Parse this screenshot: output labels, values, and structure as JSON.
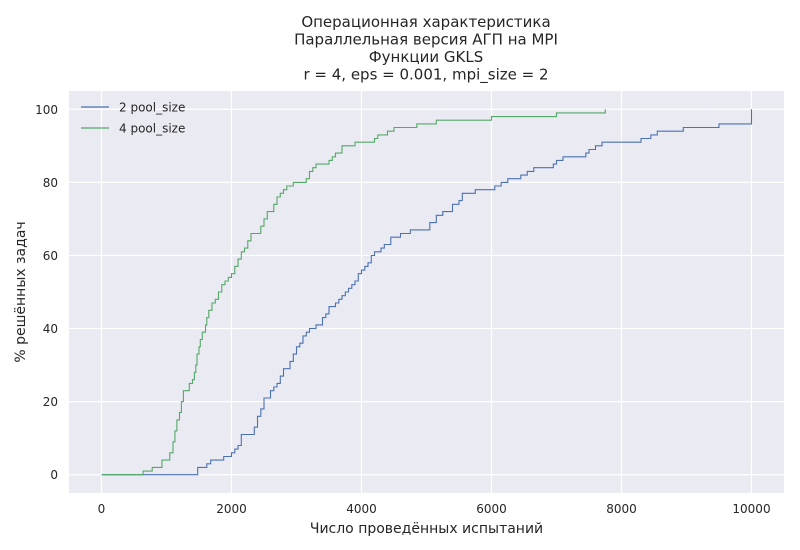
{
  "chart_data": {
    "type": "line",
    "title_lines": [
      "Операционная характеристика",
      "Параллельная версия АГП на MPI",
      "Функции GKLS",
      "r = 4, eps = 0.001, mpi_size = 2"
    ],
    "xlabel": "Число проведённых испытаний",
    "ylabel": "% решённых задач",
    "xlim": [
      -500,
      10500
    ],
    "ylim": [
      -5,
      105
    ],
    "xticks": [
      0,
      2000,
      4000,
      6000,
      8000,
      10000
    ],
    "yticks": [
      0,
      20,
      40,
      60,
      80,
      100
    ],
    "xtick_labels": [
      "0",
      "2000",
      "4000",
      "6000",
      "8000",
      "10000"
    ],
    "ytick_labels": [
      "0",
      "20",
      "40",
      "60",
      "80",
      "100"
    ],
    "grid": true,
    "legend_position": "top-left",
    "background": "#eaeaf2",
    "series": [
      {
        "name": "2 pool_size",
        "color": "#4c72b0",
        "points": [
          [
            0,
            0
          ],
          [
            1450,
            0
          ],
          [
            1480,
            2
          ],
          [
            1600,
            2
          ],
          [
            1620,
            3
          ],
          [
            1680,
            4
          ],
          [
            1850,
            4
          ],
          [
            1880,
            5
          ],
          [
            2000,
            6
          ],
          [
            2050,
            7
          ],
          [
            2100,
            8
          ],
          [
            2150,
            11
          ],
          [
            2300,
            11
          ],
          [
            2350,
            13
          ],
          [
            2400,
            16
          ],
          [
            2450,
            18
          ],
          [
            2500,
            21
          ],
          [
            2550,
            21
          ],
          [
            2600,
            23
          ],
          [
            2650,
            24
          ],
          [
            2700,
            25
          ],
          [
            2750,
            27
          ],
          [
            2800,
            29
          ],
          [
            2900,
            31
          ],
          [
            2950,
            33
          ],
          [
            3000,
            35
          ],
          [
            3050,
            36
          ],
          [
            3100,
            38
          ],
          [
            3150,
            39
          ],
          [
            3200,
            40
          ],
          [
            3300,
            41
          ],
          [
            3400,
            43
          ],
          [
            3450,
            44
          ],
          [
            3500,
            46
          ],
          [
            3600,
            47
          ],
          [
            3650,
            48
          ],
          [
            3700,
            49
          ],
          [
            3750,
            50
          ],
          [
            3800,
            51
          ],
          [
            3850,
            52
          ],
          [
            3900,
            53
          ],
          [
            3950,
            55
          ],
          [
            4000,
            56
          ],
          [
            4050,
            57
          ],
          [
            4100,
            58
          ],
          [
            4150,
            60
          ],
          [
            4200,
            61
          ],
          [
            4300,
            62
          ],
          [
            4350,
            63
          ],
          [
            4450,
            65
          ],
          [
            4600,
            66
          ],
          [
            4750,
            67
          ],
          [
            5050,
            69
          ],
          [
            5150,
            71
          ],
          [
            5250,
            72
          ],
          [
            5400,
            74
          ],
          [
            5500,
            75
          ],
          [
            5550,
            77
          ],
          [
            5750,
            78
          ],
          [
            6050,
            79
          ],
          [
            6150,
            80
          ],
          [
            6250,
            81
          ],
          [
            6450,
            82
          ],
          [
            6550,
            83
          ],
          [
            6650,
            84
          ],
          [
            6950,
            85
          ],
          [
            7000,
            86
          ],
          [
            7100,
            87
          ],
          [
            7450,
            88
          ],
          [
            7500,
            89
          ],
          [
            7600,
            90
          ],
          [
            7700,
            91
          ],
          [
            8300,
            92
          ],
          [
            8450,
            93
          ],
          [
            8550,
            94
          ],
          [
            8950,
            95
          ],
          [
            9500,
            96
          ],
          [
            9990,
            96
          ],
          [
            10000,
            100
          ]
        ]
      },
      {
        "name": "4 pool_size",
        "color": "#55a868",
        "points": [
          [
            0,
            0
          ],
          [
            620,
            0
          ],
          [
            640,
            1
          ],
          [
            750,
            1
          ],
          [
            780,
            2
          ],
          [
            900,
            2
          ],
          [
            930,
            4
          ],
          [
            1000,
            4
          ],
          [
            1050,
            6
          ],
          [
            1100,
            9
          ],
          [
            1130,
            12
          ],
          [
            1160,
            15
          ],
          [
            1200,
            17
          ],
          [
            1230,
            20
          ],
          [
            1260,
            23
          ],
          [
            1350,
            25
          ],
          [
            1400,
            26
          ],
          [
            1430,
            28
          ],
          [
            1450,
            30
          ],
          [
            1470,
            33
          ],
          [
            1500,
            35
          ],
          [
            1520,
            37
          ],
          [
            1550,
            39
          ],
          [
            1600,
            41
          ],
          [
            1620,
            43
          ],
          [
            1650,
            45
          ],
          [
            1700,
            47
          ],
          [
            1750,
            48
          ],
          [
            1800,
            50
          ],
          [
            1850,
            52
          ],
          [
            1900,
            53
          ],
          [
            1950,
            54
          ],
          [
            2000,
            55
          ],
          [
            2050,
            57
          ],
          [
            2100,
            59
          ],
          [
            2150,
            61
          ],
          [
            2200,
            62
          ],
          [
            2250,
            64
          ],
          [
            2300,
            66
          ],
          [
            2450,
            68
          ],
          [
            2500,
            70
          ],
          [
            2550,
            72
          ],
          [
            2650,
            74
          ],
          [
            2700,
            76
          ],
          [
            2750,
            77
          ],
          [
            2800,
            78
          ],
          [
            2850,
            79
          ],
          [
            2950,
            80
          ],
          [
            3150,
            81
          ],
          [
            3200,
            83
          ],
          [
            3250,
            84
          ],
          [
            3300,
            85
          ],
          [
            3500,
            86
          ],
          [
            3550,
            87
          ],
          [
            3600,
            88
          ],
          [
            3700,
            90
          ],
          [
            3900,
            91
          ],
          [
            4200,
            92
          ],
          [
            4250,
            93
          ],
          [
            4400,
            94
          ],
          [
            4500,
            95
          ],
          [
            4850,
            96
          ],
          [
            5150,
            97
          ],
          [
            6000,
            98
          ],
          [
            7000,
            99
          ],
          [
            7750,
            100
          ]
        ]
      }
    ]
  }
}
